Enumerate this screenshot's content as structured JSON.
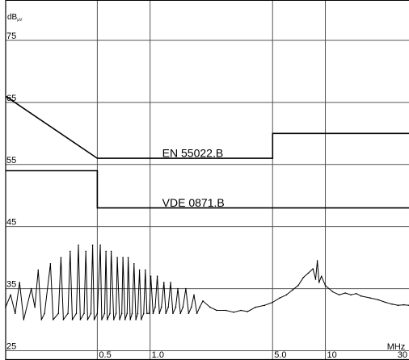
{
  "chart_data": {
    "type": "line",
    "title": "",
    "xlabel": "",
    "ylabel": "",
    "y_unit_label": "dB",
    "y_unit_sub": "µV",
    "x_unit_label": "MHz",
    "x_scale": "log",
    "xlim": [
      0.15,
      30
    ],
    "ylim": [
      23.5,
      81.5
    ],
    "grid": true,
    "x_ticks": [
      {
        "value": 0.5,
        "label": "0.5"
      },
      {
        "value": 1.0,
        "label": "1.0"
      },
      {
        "value": 5.0,
        "label": "5.0"
      },
      {
        "value": 10,
        "label": "10"
      },
      {
        "value": 30,
        "label": "30"
      }
    ],
    "x_gridlines": [
      0.5,
      1.0,
      5.0,
      10
    ],
    "y_ticks": [
      {
        "value": 75,
        "label": "75"
      },
      {
        "value": 65,
        "label": "65"
      },
      {
        "value": 55,
        "label": "55"
      },
      {
        "value": 45,
        "label": "45"
      },
      {
        "value": 35,
        "label": "35"
      },
      {
        "value": 25,
        "label": "25"
      }
    ],
    "y_gridlines": [
      25,
      35,
      45,
      55,
      65,
      75
    ],
    "limit_lines": [
      {
        "name": "EN 55022.B",
        "label_at": {
          "x": 1.0,
          "y": 56.2
        },
        "points": [
          [
            0.15,
            66
          ],
          [
            0.5,
            56
          ],
          [
            5,
            56
          ],
          [
            5,
            60
          ],
          [
            30,
            60
          ]
        ]
      },
      {
        "name": "VDE 0871.B",
        "label_at": {
          "x": 1.0,
          "y": 48.2
        },
        "points": [
          [
            0.15,
            54
          ],
          [
            0.5,
            54
          ],
          [
            0.5,
            48
          ],
          [
            30,
            48
          ]
        ]
      }
    ],
    "series": [
      {
        "points": [
          [
            0.15,
            32
          ],
          [
            0.16,
            34
          ],
          [
            0.17,
            31
          ],
          [
            0.18,
            36
          ],
          [
            0.19,
            30
          ],
          [
            0.21,
            35
          ],
          [
            0.22,
            32
          ],
          [
            0.23,
            38
          ],
          [
            0.24,
            30
          ],
          [
            0.25,
            31
          ],
          [
            0.27,
            39
          ],
          [
            0.28,
            30
          ],
          [
            0.3,
            31
          ],
          [
            0.31,
            40
          ],
          [
            0.32,
            30
          ],
          [
            0.34,
            31
          ],
          [
            0.35,
            41
          ],
          [
            0.36,
            30
          ],
          [
            0.38,
            31
          ],
          [
            0.39,
            42
          ],
          [
            0.4,
            30
          ],
          [
            0.42,
            31
          ],
          [
            0.43,
            41
          ],
          [
            0.44,
            30
          ],
          [
            0.46,
            31
          ],
          [
            0.47,
            42
          ],
          [
            0.48,
            30
          ],
          [
            0.5,
            31
          ],
          [
            0.52,
            42
          ],
          [
            0.53,
            30
          ],
          [
            0.55,
            31
          ],
          [
            0.56,
            41
          ],
          [
            0.57,
            30
          ],
          [
            0.59,
            31
          ],
          [
            0.6,
            41
          ],
          [
            0.62,
            30
          ],
          [
            0.64,
            31
          ],
          [
            0.65,
            40
          ],
          [
            0.67,
            30
          ],
          [
            0.69,
            31
          ],
          [
            0.7,
            40
          ],
          [
            0.72,
            30
          ],
          [
            0.74,
            31
          ],
          [
            0.75,
            40
          ],
          [
            0.77,
            30
          ],
          [
            0.79,
            31
          ],
          [
            0.81,
            39
          ],
          [
            0.83,
            30
          ],
          [
            0.85,
            31
          ],
          [
            0.87,
            38
          ],
          [
            0.89,
            30
          ],
          [
            0.92,
            31
          ],
          [
            0.94,
            38
          ],
          [
            0.96,
            31
          ],
          [
            0.99,
            31
          ],
          [
            1.01,
            37
          ],
          [
            1.04,
            31
          ],
          [
            1.07,
            32
          ],
          [
            1.1,
            37
          ],
          [
            1.13,
            31
          ],
          [
            1.16,
            32
          ],
          [
            1.2,
            36
          ],
          [
            1.23,
            31
          ],
          [
            1.27,
            32
          ],
          [
            1.31,
            36
          ],
          [
            1.35,
            31
          ],
          [
            1.4,
            32
          ],
          [
            1.44,
            35
          ],
          [
            1.49,
            31
          ],
          [
            1.54,
            32
          ],
          [
            1.6,
            35
          ],
          [
            1.66,
            31
          ],
          [
            1.72,
            32
          ],
          [
            1.78,
            34
          ],
          [
            1.85,
            31
          ],
          [
            1.92,
            32
          ],
          [
            2.0,
            33
          ],
          [
            2.2,
            32
          ],
          [
            2.4,
            31.5
          ],
          [
            2.7,
            31.5
          ],
          [
            3.0,
            31.2
          ],
          [
            3.3,
            31.5
          ],
          [
            3.6,
            31.3
          ],
          [
            4.0,
            32
          ],
          [
            4.5,
            32.3
          ],
          [
            5.0,
            32.8
          ],
          [
            5.5,
            33.5
          ],
          [
            6.0,
            34
          ],
          [
            6.5,
            34.8
          ],
          [
            7.0,
            35.5
          ],
          [
            7.5,
            36.8
          ],
          [
            8.0,
            37.5
          ],
          [
            8.5,
            38.2
          ],
          [
            8.8,
            36.5
          ],
          [
            9.0,
            39.5
          ],
          [
            9.2,
            36
          ],
          [
            9.5,
            37
          ],
          [
            10.0,
            35.5
          ],
          [
            11.0,
            34.5
          ],
          [
            12.0,
            34
          ],
          [
            13.0,
            34.3
          ],
          [
            14.0,
            34
          ],
          [
            15.0,
            34.2
          ],
          [
            16.0,
            33.8
          ],
          [
            18.0,
            33.5
          ],
          [
            20.0,
            33.2
          ],
          [
            22.0,
            32.8
          ],
          [
            24.0,
            32.5
          ],
          [
            26.0,
            32.3
          ],
          [
            28.0,
            32.4
          ],
          [
            30.0,
            32.3
          ]
        ]
      }
    ]
  }
}
